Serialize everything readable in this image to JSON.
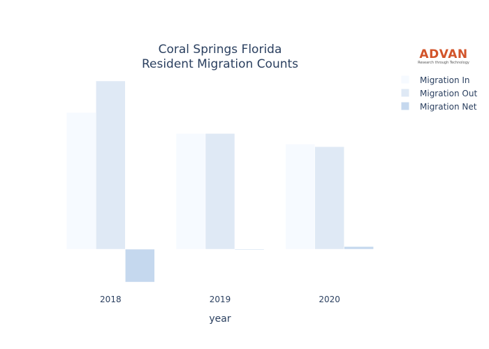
{
  "logo": {
    "name": "ADVAN",
    "tagline": "Research through Technology"
  },
  "chart_data": {
    "type": "bar",
    "title": "Coral Springs Florida",
    "subtitle": "Resident Migration Counts",
    "xlabel": "year",
    "ylabel": "",
    "categories": [
      "2018",
      "2019",
      "2020"
    ],
    "ylim": [
      -1250,
      6500
    ],
    "grid": false,
    "legend_position": "top-right",
    "series": [
      {
        "name": "Migration In",
        "values": [
          5200,
          4400,
          4000
        ],
        "color": "#f6faff"
      },
      {
        "name": "Migration Out",
        "values": [
          6400,
          4400,
          3900
        ],
        "color": "#dfe9f5"
      },
      {
        "name": "Migration Net",
        "values": [
          -1250,
          -20,
          100
        ],
        "color": "#c5d8ee"
      }
    ]
  }
}
